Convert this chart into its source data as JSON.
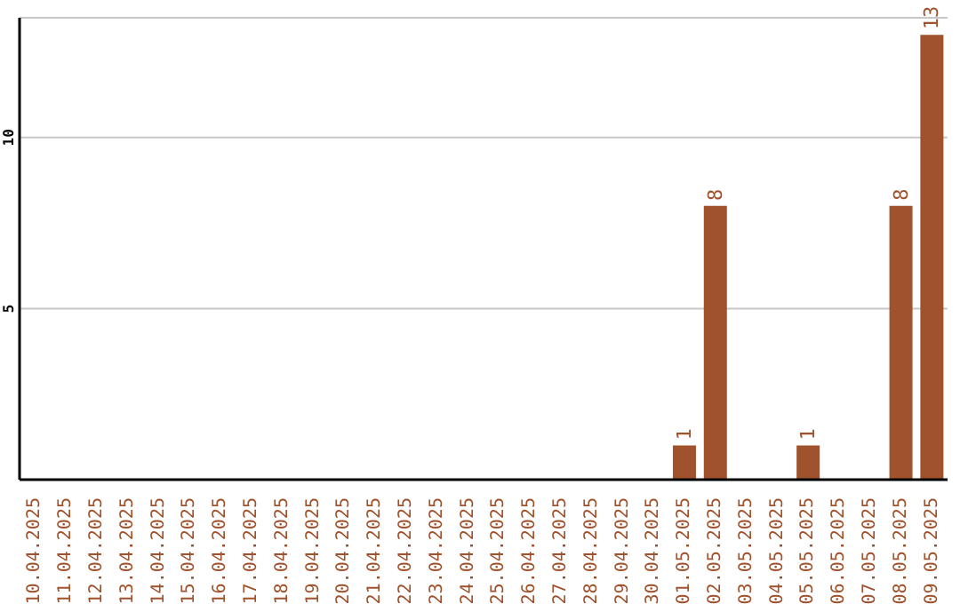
{
  "chart_data": {
    "type": "bar",
    "categories": [
      "10.04.2025",
      "11.04.2025",
      "12.04.2025",
      "13.04.2025",
      "14.04.2025",
      "15.04.2025",
      "16.04.2025",
      "17.04.2025",
      "18.04.2025",
      "19.04.2025",
      "20.04.2025",
      "21.04.2025",
      "22.04.2025",
      "23.04.2025",
      "24.04.2025",
      "25.04.2025",
      "26.04.2025",
      "27.04.2025",
      "28.04.2025",
      "29.04.2025",
      "30.04.2025",
      "01.05.2025",
      "02.05.2025",
      "03.05.2025",
      "04.05.2025",
      "05.05.2025",
      "06.05.2025",
      "07.05.2025",
      "08.05.2025",
      "09.05.2025"
    ],
    "values": [
      0,
      0,
      0,
      0,
      0,
      0,
      0,
      0,
      0,
      0,
      0,
      0,
      0,
      0,
      0,
      0,
      0,
      0,
      0,
      0,
      0,
      1,
      8,
      0,
      0,
      1,
      0,
      0,
      8,
      13
    ],
    "value_labels": [
      null,
      null,
      null,
      null,
      null,
      null,
      null,
      null,
      null,
      null,
      null,
      null,
      null,
      null,
      null,
      null,
      null,
      null,
      null,
      null,
      null,
      "1",
      "8",
      null,
      null,
      "1",
      null,
      null,
      "8",
      "13"
    ],
    "color": "#a0522d",
    "ylim": [
      0,
      13.5
    ],
    "yticks": [
      5,
      10
    ],
    "grid": "y",
    "legend": false
  }
}
